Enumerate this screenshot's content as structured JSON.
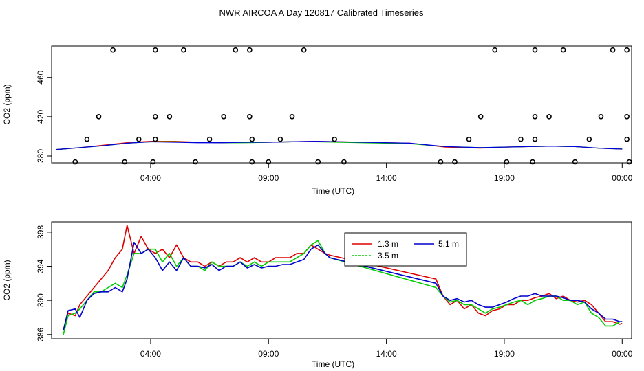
{
  "page_title": "NWR AIRCOA A  Day 120817  Calibrated Timeseries",
  "chart_data": [
    {
      "type": "scatter+line",
      "title": "",
      "xlabel": "Time (UTC)",
      "ylabel": "CO2 (ppm)",
      "xlim": [
        -0.2,
        24.4
      ],
      "ylim": [
        373,
        492
      ],
      "x_ticks": [
        4,
        9,
        14,
        19,
        24
      ],
      "x_tick_labels": [
        "04:00",
        "09:00",
        "14:00",
        "19:00",
        "00:00"
      ],
      "y_ticks": [
        380,
        420,
        460
      ],
      "y_tick_labels": [
        "380",
        "420",
        "460"
      ],
      "points": [
        {
          "x": 0.8,
          "y": 374
        },
        {
          "x": 1.3,
          "y": 397
        },
        {
          "x": 1.8,
          "y": 420
        },
        {
          "x": 2.4,
          "y": 488
        },
        {
          "x": 2.9,
          "y": 374
        },
        {
          "x": 3.5,
          "y": 397
        },
        {
          "x": 4.1,
          "y": 374
        },
        {
          "x": 4.2,
          "y": 397
        },
        {
          "x": 4.2,
          "y": 420
        },
        {
          "x": 4.2,
          "y": 488
        },
        {
          "x": 4.8,
          "y": 420
        },
        {
          "x": 5.4,
          "y": 488
        },
        {
          "x": 5.9,
          "y": 374
        },
        {
          "x": 6.5,
          "y": 397
        },
        {
          "x": 7.1,
          "y": 420
        },
        {
          "x": 7.6,
          "y": 488
        },
        {
          "x": 8.2,
          "y": 488
        },
        {
          "x": 8.2,
          "y": 420
        },
        {
          "x": 8.3,
          "y": 397
        },
        {
          "x": 8.3,
          "y": 374
        },
        {
          "x": 9.0,
          "y": 374
        },
        {
          "x": 9.5,
          "y": 397
        },
        {
          "x": 10.0,
          "y": 420
        },
        {
          "x": 10.5,
          "y": 488
        },
        {
          "x": 11.1,
          "y": 374
        },
        {
          "x": 11.8,
          "y": 397
        },
        {
          "x": 12.2,
          "y": 374
        },
        {
          "x": 16.3,
          "y": 374
        },
        {
          "x": 16.9,
          "y": 374
        },
        {
          "x": 17.5,
          "y": 397
        },
        {
          "x": 18.0,
          "y": 420
        },
        {
          "x": 18.6,
          "y": 488
        },
        {
          "x": 19.1,
          "y": 374
        },
        {
          "x": 19.7,
          "y": 397
        },
        {
          "x": 20.2,
          "y": 374
        },
        {
          "x": 20.3,
          "y": 397
        },
        {
          "x": 20.3,
          "y": 420
        },
        {
          "x": 20.3,
          "y": 488
        },
        {
          "x": 20.9,
          "y": 420
        },
        {
          "x": 21.5,
          "y": 488
        },
        {
          "x": 22.0,
          "y": 374
        },
        {
          "x": 22.6,
          "y": 397
        },
        {
          "x": 23.1,
          "y": 420
        },
        {
          "x": 23.6,
          "y": 488
        },
        {
          "x": 24.2,
          "y": 488
        },
        {
          "x": 24.2,
          "y": 420
        },
        {
          "x": 24.2,
          "y": 397
        },
        {
          "x": 24.3,
          "y": 374
        }
      ],
      "series": [
        {
          "name": "1.3 m",
          "color": "#ff0000",
          "x": [
            0,
            1,
            2,
            3,
            4,
            5,
            6,
            7,
            8,
            9,
            10,
            11,
            13,
            15,
            16.5,
            18,
            19,
            20,
            21,
            22,
            23,
            24
          ],
          "y": [
            386.5,
            388.5,
            391,
            393.5,
            395,
            395,
            394,
            393.5,
            394,
            394,
            394.5,
            395,
            394,
            393,
            389,
            388,
            389,
            389.5,
            390,
            389.5,
            388,
            387
          ]
        },
        {
          "name": "3.5 m",
          "color": "#00c000",
          "x": [
            0,
            1,
            2,
            3,
            4,
            5,
            6,
            7,
            8,
            9,
            10,
            11,
            13,
            15,
            16.5,
            18,
            19,
            20,
            21,
            22,
            23,
            24
          ],
          "y": [
            386.5,
            388.5,
            390.5,
            393,
            394.5,
            394.5,
            394,
            393.5,
            393.5,
            394,
            394.5,
            394.5,
            393.5,
            392.5,
            389.5,
            388.5,
            389,
            389.5,
            390,
            389.5,
            388,
            387
          ]
        },
        {
          "name": "5.1 m",
          "color": "#0000dd",
          "x": [
            0,
            1,
            2,
            3,
            4,
            5,
            6,
            7,
            8,
            9,
            10,
            11,
            13,
            15,
            16.5,
            18,
            19,
            20,
            21,
            22,
            23,
            24
          ],
          "y": [
            386.5,
            388.5,
            390.5,
            393,
            394.5,
            394,
            393.5,
            393.5,
            394,
            394,
            394.5,
            395,
            394,
            393,
            389.5,
            388.5,
            389,
            389.5,
            390,
            389.5,
            388,
            387
          ]
        }
      ]
    },
    {
      "type": "line",
      "title": "",
      "xlabel": "Time (UTC)",
      "ylabel": "CO2 (ppm)",
      "xlim": [
        -0.2,
        24.4
      ],
      "ylim": [
        385.5,
        399.2
      ],
      "x_ticks": [
        4,
        9,
        14,
        19,
        24
      ],
      "x_tick_labels": [
        "04:00",
        "09:00",
        "14:00",
        "19:00",
        "00:00"
      ],
      "y_ticks": [
        386,
        390,
        394,
        398
      ],
      "y_tick_labels": [
        "386",
        "390",
        "394",
        "398"
      ],
      "legend": {
        "position": "top-center",
        "entries": [
          "1.3 m",
          "5.1 m",
          "3.5 m"
        ]
      },
      "series": [
        {
          "name": "1.3 m",
          "color": "#dd0000",
          "x": [
            0.3,
            0.5,
            0.8,
            1.0,
            1.3,
            1.6,
            1.9,
            2.2,
            2.5,
            2.8,
            3.0,
            3.3,
            3.6,
            3.9,
            4.2,
            4.5,
            4.8,
            5.1,
            5.4,
            5.7,
            6.0,
            6.3,
            6.6,
            6.9,
            7.2,
            7.5,
            7.8,
            8.1,
            8.4,
            8.7,
            9.0,
            9.3,
            9.6,
            9.9,
            10.2,
            10.5,
            10.8,
            11.1,
            11.4,
            11.6,
            16.1,
            16.4,
            16.7,
            17.0,
            17.3,
            17.6,
            17.9,
            18.2,
            18.5,
            18.8,
            19.1,
            19.4,
            19.7,
            20.0,
            20.3,
            20.6,
            20.9,
            21.2,
            21.5,
            21.8,
            22.1,
            22.4,
            22.7,
            23.0,
            23.3,
            23.6,
            23.9,
            24.0
          ],
          "y": [
            386.5,
            388.5,
            388.2,
            389.5,
            390.5,
            391.5,
            392.5,
            393.5,
            395.0,
            396.0,
            398.8,
            395.5,
            397.5,
            396.0,
            395.5,
            396.0,
            395.0,
            396.5,
            395.0,
            394.5,
            394.5,
            394.0,
            394.5,
            394.0,
            394.5,
            394.5,
            395.0,
            394.5,
            395.0,
            394.5,
            394.5,
            395.0,
            395.0,
            395.0,
            395.5,
            395.5,
            396.5,
            396.0,
            395.5,
            395.3,
            392.5,
            390.5,
            389.5,
            390.0,
            389.0,
            389.5,
            388.5,
            388.2,
            388.8,
            389.0,
            389.5,
            389.5,
            390.0,
            390.0,
            390.3,
            390.5,
            390.8,
            390.2,
            390.5,
            390.0,
            389.8,
            390.0,
            389.5,
            388.5,
            387.5,
            387.5,
            387.2,
            387.3
          ]
        },
        {
          "name": "3.5 m",
          "color": "#00cc00",
          "x": [
            0.3,
            0.5,
            0.8,
            1.0,
            1.3,
            1.6,
            1.9,
            2.2,
            2.5,
            2.8,
            3.0,
            3.3,
            3.6,
            3.9,
            4.2,
            4.5,
            4.8,
            5.1,
            5.4,
            5.7,
            6.0,
            6.3,
            6.6,
            6.9,
            7.2,
            7.5,
            7.8,
            8.1,
            8.4,
            8.7,
            9.0,
            9.3,
            9.6,
            9.9,
            10.2,
            10.5,
            10.8,
            11.1,
            11.4,
            11.6,
            16.1,
            16.4,
            16.7,
            17.0,
            17.3,
            17.6,
            17.9,
            18.2,
            18.5,
            18.8,
            19.1,
            19.4,
            19.7,
            20.0,
            20.3,
            20.6,
            20.9,
            21.2,
            21.5,
            21.8,
            22.1,
            22.4,
            22.7,
            23.0,
            23.3,
            23.6,
            23.9,
            24.0
          ],
          "y": [
            386.0,
            388.2,
            388.5,
            389.0,
            390.0,
            391.0,
            391.0,
            391.5,
            392.0,
            391.5,
            393.0,
            395.5,
            395.5,
            396.0,
            396.0,
            394.5,
            395.5,
            394.0,
            395.0,
            394.0,
            394.0,
            393.5,
            394.5,
            394.0,
            394.0,
            394.0,
            394.5,
            394.0,
            394.5,
            394.0,
            394.5,
            394.5,
            394.5,
            394.5,
            395.0,
            395.5,
            396.5,
            397.0,
            395.5,
            395.0,
            391.5,
            390.5,
            389.8,
            390.0,
            389.5,
            389.5,
            389.0,
            388.5,
            389.0,
            389.2,
            389.5,
            389.8,
            390.0,
            389.5,
            390.0,
            390.2,
            390.5,
            390.5,
            390.0,
            390.0,
            389.5,
            389.8,
            388.5,
            388.0,
            387.0,
            387.0,
            387.5,
            387.5
          ]
        },
        {
          "name": "5.1 m",
          "color": "#0000cc",
          "x": [
            0.3,
            0.5,
            0.8,
            1.0,
            1.3,
            1.6,
            1.9,
            2.2,
            2.5,
            2.8,
            3.0,
            3.3,
            3.6,
            3.9,
            4.2,
            4.5,
            4.8,
            5.1,
            5.4,
            5.7,
            6.0,
            6.3,
            6.6,
            6.9,
            7.2,
            7.5,
            7.8,
            8.1,
            8.4,
            8.7,
            9.0,
            9.3,
            9.6,
            9.9,
            10.2,
            10.5,
            10.8,
            11.1,
            11.4,
            11.6,
            16.1,
            16.4,
            16.7,
            17.0,
            17.3,
            17.6,
            17.9,
            18.2,
            18.5,
            18.8,
            19.1,
            19.4,
            19.7,
            20.0,
            20.3,
            20.6,
            20.9,
            21.2,
            21.5,
            21.8,
            22.1,
            22.4,
            22.7,
            23.0,
            23.3,
            23.6,
            23.9,
            24.0
          ],
          "y": [
            386.5,
            388.8,
            389.0,
            388.0,
            390.0,
            390.8,
            391.0,
            391.0,
            391.5,
            391.0,
            392.5,
            396.8,
            395.5,
            396.0,
            395.0,
            393.5,
            394.5,
            393.5,
            395.0,
            394.0,
            394.0,
            393.8,
            394.2,
            393.5,
            394.0,
            394.0,
            394.5,
            393.8,
            394.2,
            393.8,
            394.0,
            394.0,
            394.2,
            394.2,
            394.5,
            394.8,
            396.0,
            396.5,
            395.5,
            395.0,
            392.0,
            390.5,
            390.0,
            390.2,
            389.8,
            390.0,
            389.5,
            389.2,
            389.2,
            389.5,
            389.8,
            390.2,
            390.5,
            390.5,
            390.8,
            390.5,
            390.5,
            390.5,
            390.3,
            390.0,
            390.0,
            389.8,
            389.0,
            388.5,
            387.8,
            387.8,
            387.5,
            387.5
          ]
        }
      ]
    }
  ]
}
